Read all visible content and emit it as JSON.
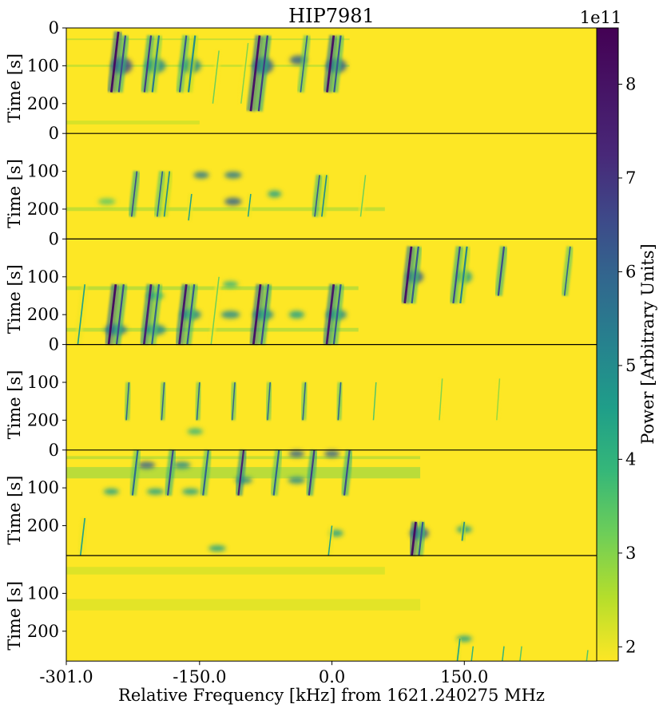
{
  "chart_data": {
    "type": "heatmap",
    "title": "HIP7981",
    "xlabel": "Relative Frequency [kHz] from 1621.240275 MHz",
    "ylabel": "Time [s]",
    "x_ticks": [
      "-301.0",
      "-150.0",
      "0.0",
      "150.0"
    ],
    "x_tick_values": [
      -301.0,
      -150.0,
      0.0,
      150.0
    ],
    "xlim": [
      -301.0,
      300.0
    ],
    "panels": [
      {
        "y_ticks": [
          0,
          100,
          200
        ],
        "ylim": [
          0,
          279
        ]
      },
      {
        "y_ticks": [
          0,
          100,
          200
        ],
        "ylim": [
          0,
          279
        ]
      },
      {
        "y_ticks": [
          0,
          100,
          200
        ],
        "ylim": [
          0,
          279
        ]
      },
      {
        "y_ticks": [
          0,
          100,
          200
        ],
        "ylim": [
          0,
          279
        ]
      },
      {
        "y_ticks": [
          0,
          100,
          200
        ],
        "ylim": [
          0,
          279
        ]
      },
      {
        "y_ticks": [
          100,
          200
        ],
        "ylim": [
          0,
          279
        ]
      }
    ],
    "colorbar": {
      "label": "Power [Arbitrary Units]",
      "multiplier": "1e11",
      "ticks": [
        2,
        3,
        4,
        5,
        6,
        7,
        8
      ],
      "range": [
        1.85,
        8.6
      ],
      "colormap": "viridis"
    },
    "signals": [
      {
        "panel": 0,
        "f": -242,
        "t0": 10,
        "t1": 170,
        "drift": -0.05,
        "width": 5,
        "power": 8.2
      },
      {
        "panel": 0,
        "f": -234,
        "t0": 20,
        "t1": 170,
        "drift": -0.05,
        "width": 4,
        "power": 6.5
      },
      {
        "panel": 0,
        "f": -205,
        "t0": 20,
        "t1": 170,
        "drift": -0.05,
        "width": 4,
        "power": 6.8
      },
      {
        "panel": 0,
        "f": -196,
        "t0": 20,
        "t1": 170,
        "drift": -0.05,
        "width": 4,
        "power": 5.5
      },
      {
        "panel": 0,
        "f": -165,
        "t0": 20,
        "t1": 170,
        "drift": -0.05,
        "width": 4,
        "power": 6.2
      },
      {
        "panel": 0,
        "f": -155,
        "t0": 20,
        "t1": 170,
        "drift": -0.05,
        "width": 4,
        "power": 5.0
      },
      {
        "panel": 0,
        "f": -82,
        "t0": 20,
        "t1": 220,
        "drift": -0.05,
        "width": 5,
        "power": 8.0
      },
      {
        "panel": 0,
        "f": -73,
        "t0": 20,
        "t1": 220,
        "drift": -0.05,
        "width": 4,
        "power": 6.8
      },
      {
        "panel": 0,
        "f": -28,
        "t0": 20,
        "t1": 170,
        "drift": -0.05,
        "width": 3,
        "power": 6.0
      },
      {
        "panel": 0,
        "f": 2,
        "t0": 20,
        "t1": 170,
        "drift": -0.05,
        "width": 5,
        "power": 8.0
      },
      {
        "panel": 0,
        "f": 10,
        "t0": 20,
        "t1": 170,
        "drift": -0.05,
        "width": 4,
        "power": 6.2
      },
      {
        "panel": 0,
        "f": -128,
        "t0": 60,
        "t1": 200,
        "drift": -0.05,
        "width": 2,
        "power": 3.2
      },
      {
        "panel": 0,
        "f": -95,
        "t0": 40,
        "t1": 200,
        "drift": -0.05,
        "width": 2,
        "power": 3.0
      },
      {
        "panel": 1,
        "f": -221,
        "t0": 100,
        "t1": 220,
        "drift": -0.05,
        "width": 3,
        "power": 6.5
      },
      {
        "panel": 1,
        "f": -192,
        "t0": 100,
        "t1": 220,
        "drift": -0.05,
        "width": 3,
        "power": 6.0
      },
      {
        "panel": 1,
        "f": -184,
        "t0": 100,
        "t1": 220,
        "drift": -0.05,
        "width": 3,
        "power": 5.0
      },
      {
        "panel": 1,
        "f": -159,
        "t0": 160,
        "t1": 230,
        "drift": -0.05,
        "width": 2,
        "power": 4.5
      },
      {
        "panel": 1,
        "f": -92,
        "t0": 160,
        "t1": 220,
        "drift": -0.05,
        "width": 2,
        "power": 4.5
      },
      {
        "panel": 1,
        "f": -14,
        "t0": 110,
        "t1": 220,
        "drift": -0.05,
        "width": 3,
        "power": 6.2
      },
      {
        "panel": 1,
        "f": -6,
        "t0": 110,
        "t1": 220,
        "drift": -0.05,
        "width": 3,
        "power": 5.0
      },
      {
        "panel": 1,
        "f": 38,
        "t0": 110,
        "t1": 220,
        "drift": -0.05,
        "width": 2,
        "power": 3.2
      },
      {
        "panel": 2,
        "f": -245,
        "t0": 120,
        "t1": 279,
        "drift": -0.05,
        "width": 5,
        "power": 8.2
      },
      {
        "panel": 2,
        "f": -236,
        "t0": 120,
        "t1": 279,
        "drift": -0.05,
        "width": 4,
        "power": 6.5
      },
      {
        "panel": 2,
        "f": -205,
        "t0": 120,
        "t1": 279,
        "drift": -0.05,
        "width": 5,
        "power": 7.5
      },
      {
        "panel": 2,
        "f": -196,
        "t0": 120,
        "t1": 279,
        "drift": -0.05,
        "width": 4,
        "power": 6.0
      },
      {
        "panel": 2,
        "f": -165,
        "t0": 120,
        "t1": 279,
        "drift": -0.05,
        "width": 5,
        "power": 7.8
      },
      {
        "panel": 2,
        "f": -156,
        "t0": 120,
        "t1": 279,
        "drift": -0.05,
        "width": 4,
        "power": 6.2
      },
      {
        "panel": 2,
        "f": -81,
        "t0": 120,
        "t1": 279,
        "drift": -0.05,
        "width": 5,
        "power": 8.0
      },
      {
        "panel": 2,
        "f": -72,
        "t0": 120,
        "t1": 279,
        "drift": -0.05,
        "width": 4,
        "power": 6.5
      },
      {
        "panel": 2,
        "f": 2,
        "t0": 120,
        "t1": 279,
        "drift": -0.05,
        "width": 5,
        "power": 7.8
      },
      {
        "panel": 2,
        "f": 10,
        "t0": 120,
        "t1": 279,
        "drift": -0.05,
        "width": 4,
        "power": 6.2
      },
      {
        "panel": 2,
        "f": 90,
        "t0": 20,
        "t1": 170,
        "drift": -0.05,
        "width": 5,
        "power": 8.0
      },
      {
        "panel": 2,
        "f": 98,
        "t0": 20,
        "t1": 170,
        "drift": -0.05,
        "width": 4,
        "power": 6.2
      },
      {
        "panel": 2,
        "f": 145,
        "t0": 20,
        "t1": 170,
        "drift": -0.05,
        "width": 4,
        "power": 6.5
      },
      {
        "panel": 2,
        "f": 153,
        "t0": 20,
        "t1": 170,
        "drift": -0.05,
        "width": 4,
        "power": 5.2
      },
      {
        "panel": 2,
        "f": 195,
        "t0": 20,
        "t1": 150,
        "drift": -0.05,
        "width": 4,
        "power": 6.5
      },
      {
        "panel": 2,
        "f": 270,
        "t0": 20,
        "t1": 150,
        "drift": -0.05,
        "width": 3,
        "power": 6.0
      },
      {
        "panel": 2,
        "f": -128,
        "t0": 100,
        "t1": 279,
        "drift": -0.05,
        "width": 2,
        "power": 3.2
      },
      {
        "panel": 2,
        "f": -280,
        "t0": 120,
        "t1": 279,
        "drift": -0.05,
        "width": 3,
        "power": 4.5
      },
      {
        "panel": 3,
        "f": -230,
        "t0": 100,
        "t1": 200,
        "drift": -0.03,
        "width": 2,
        "power": 6.0
      },
      {
        "panel": 3,
        "f": -190,
        "t0": 100,
        "t1": 200,
        "drift": -0.03,
        "width": 2,
        "power": 6.0
      },
      {
        "panel": 3,
        "f": -150,
        "t0": 100,
        "t1": 200,
        "drift": -0.03,
        "width": 2,
        "power": 6.0
      },
      {
        "panel": 3,
        "f": -110,
        "t0": 100,
        "t1": 200,
        "drift": -0.03,
        "width": 2,
        "power": 6.0
      },
      {
        "panel": 3,
        "f": -70,
        "t0": 100,
        "t1": 200,
        "drift": -0.03,
        "width": 2,
        "power": 6.0
      },
      {
        "panel": 3,
        "f": -30,
        "t0": 100,
        "t1": 200,
        "drift": -0.03,
        "width": 2,
        "power": 6.0
      },
      {
        "panel": 3,
        "f": 10,
        "t0": 100,
        "t1": 200,
        "drift": -0.03,
        "width": 2,
        "power": 6.0
      },
      {
        "panel": 3,
        "f": 50,
        "t0": 100,
        "t1": 200,
        "drift": -0.03,
        "width": 2,
        "power": 3.5
      },
      {
        "panel": 3,
        "f": 125,
        "t0": 90,
        "t1": 200,
        "drift": -0.03,
        "width": 2,
        "power": 3.0
      },
      {
        "panel": 3,
        "f": 190,
        "t0": 90,
        "t1": 200,
        "drift": -0.03,
        "width": 2,
        "power": 2.8
      },
      {
        "panel": 4,
        "f": -220,
        "t0": 0,
        "t1": 120,
        "drift": -0.05,
        "width": 4,
        "power": 5.8
      },
      {
        "panel": 4,
        "f": -180,
        "t0": 0,
        "t1": 120,
        "drift": -0.05,
        "width": 4,
        "power": 6.5
      },
      {
        "panel": 4,
        "f": -140,
        "t0": 0,
        "t1": 120,
        "drift": -0.05,
        "width": 4,
        "power": 6.0
      },
      {
        "panel": 4,
        "f": -100,
        "t0": 0,
        "t1": 120,
        "drift": -0.05,
        "width": 4,
        "power": 7.5
      },
      {
        "panel": 4,
        "f": -60,
        "t0": 0,
        "t1": 120,
        "drift": -0.05,
        "width": 4,
        "power": 6.0
      },
      {
        "panel": 4,
        "f": -20,
        "t0": 0,
        "t1": 120,
        "drift": -0.05,
        "width": 4,
        "power": 6.8
      },
      {
        "panel": 4,
        "f": 20,
        "t0": 0,
        "t1": 120,
        "drift": -0.05,
        "width": 4,
        "power": 6.5
      },
      {
        "panel": 4,
        "f": 95,
        "t0": 190,
        "t1": 279,
        "drift": -0.05,
        "width": 5,
        "power": 8.2
      },
      {
        "panel": 4,
        "f": 103,
        "t0": 190,
        "t1": 279,
        "drift": -0.05,
        "width": 4,
        "power": 6.2
      },
      {
        "panel": 4,
        "f": 150,
        "t0": 190,
        "t1": 240,
        "drift": -0.05,
        "width": 3,
        "power": 5.0
      },
      {
        "panel": 4,
        "f": 0,
        "t0": 200,
        "t1": 279,
        "drift": -0.05,
        "width": 2,
        "power": 4.5
      },
      {
        "panel": 4,
        "f": -280,
        "t0": 180,
        "t1": 279,
        "drift": -0.05,
        "width": 3,
        "power": 4.5
      },
      {
        "panel": 5,
        "f": 145,
        "t0": 220,
        "t1": 279,
        "drift": -0.05,
        "width": 3,
        "power": 4.5
      },
      {
        "panel": 5,
        "f": 160,
        "t0": 240,
        "t1": 279,
        "drift": -0.05,
        "width": 2,
        "power": 4.0
      },
      {
        "panel": 5,
        "f": 195,
        "t0": 240,
        "t1": 279,
        "drift": -0.05,
        "width": 2,
        "power": 4.0
      },
      {
        "panel": 5,
        "f": 215,
        "t0": 240,
        "t1": 279,
        "drift": -0.05,
        "width": 2,
        "power": 3.5
      },
      {
        "panel": 5,
        "f": 290,
        "t0": 250,
        "t1": 279,
        "drift": -0.05,
        "width": 2,
        "power": 3.5
      }
    ],
    "blobs": [
      {
        "panel": 0,
        "f": -238,
        "t": 100,
        "fw": 18,
        "tw": 35,
        "power": 6.5
      },
      {
        "panel": 0,
        "f": -200,
        "t": 100,
        "fw": 18,
        "tw": 30,
        "power": 5.0
      },
      {
        "panel": 0,
        "f": -160,
        "t": 100,
        "fw": 18,
        "tw": 30,
        "power": 5.0
      },
      {
        "panel": 0,
        "f": -78,
        "t": 100,
        "fw": 18,
        "tw": 35,
        "power": 6.0
      },
      {
        "panel": 0,
        "f": -38,
        "t": 85,
        "fw": 14,
        "tw": 16,
        "power": 6.0
      },
      {
        "panel": 0,
        "f": 5,
        "t": 100,
        "fw": 18,
        "tw": 30,
        "power": 6.0
      },
      {
        "panel": 1,
        "f": -148,
        "t": 110,
        "fw": 12,
        "tw": 10,
        "power": 5.5
      },
      {
        "panel": 1,
        "f": -112,
        "t": 110,
        "fw": 14,
        "tw": 10,
        "power": 5.5
      },
      {
        "panel": 1,
        "f": -112,
        "t": 180,
        "fw": 14,
        "tw": 12,
        "power": 6.0
      },
      {
        "panel": 1,
        "f": -65,
        "t": 160,
        "fw": 10,
        "tw": 10,
        "power": 4.5
      },
      {
        "panel": 1,
        "f": -255,
        "t": 180,
        "fw": 14,
        "tw": 8,
        "power": 3.5
      },
      {
        "panel": 2,
        "f": -245,
        "t": 240,
        "fw": 20,
        "tw": 20,
        "power": 5.5
      },
      {
        "panel": 2,
        "f": -200,
        "t": 240,
        "fw": 18,
        "tw": 20,
        "power": 5.0
      },
      {
        "panel": 2,
        "f": -200,
        "t": 150,
        "fw": 14,
        "tw": 12,
        "power": 4.0
      },
      {
        "panel": 2,
        "f": -160,
        "t": 200,
        "fw": 18,
        "tw": 20,
        "power": 5.0
      },
      {
        "panel": 2,
        "f": -115,
        "t": 200,
        "fw": 16,
        "tw": 12,
        "power": 5.0
      },
      {
        "panel": 2,
        "f": -115,
        "t": 120,
        "fw": 12,
        "tw": 8,
        "power": 4.0
      },
      {
        "panel": 2,
        "f": -78,
        "t": 200,
        "fw": 18,
        "tw": 20,
        "power": 5.0
      },
      {
        "panel": 2,
        "f": -40,
        "t": 200,
        "fw": 12,
        "tw": 12,
        "power": 4.5
      },
      {
        "panel": 2,
        "f": 5,
        "t": 200,
        "fw": 18,
        "tw": 20,
        "power": 5.0
      },
      {
        "panel": 2,
        "f": 94,
        "t": 100,
        "fw": 14,
        "tw": 25,
        "power": 6.0
      },
      {
        "panel": 2,
        "f": 150,
        "t": 100,
        "fw": 12,
        "tw": 25,
        "power": 4.5
      },
      {
        "panel": 3,
        "f": -155,
        "t": 230,
        "fw": 12,
        "tw": 8,
        "power": 4.0
      },
      {
        "panel": 4,
        "f": -210,
        "t": 40,
        "fw": 14,
        "tw": 10,
        "power": 6.0
      },
      {
        "panel": 4,
        "f": -170,
        "t": 40,
        "fw": 14,
        "tw": 10,
        "power": 5.0
      },
      {
        "panel": 4,
        "f": -100,
        "t": 80,
        "fw": 14,
        "tw": 10,
        "power": 5.0
      },
      {
        "panel": 4,
        "f": -40,
        "t": 80,
        "fw": 14,
        "tw": 10,
        "power": 5.0
      },
      {
        "panel": 4,
        "f": -40,
        "t": 10,
        "fw": 12,
        "tw": 10,
        "power": 6.0
      },
      {
        "panel": 4,
        "f": 0,
        "t": 10,
        "fw": 12,
        "tw": 10,
        "power": 6.0
      },
      {
        "panel": 4,
        "f": -200,
        "t": 110,
        "fw": 14,
        "tw": 8,
        "power": 4.5
      },
      {
        "panel": 4,
        "f": -160,
        "t": 110,
        "fw": 14,
        "tw": 8,
        "power": 4.5
      },
      {
        "panel": 4,
        "f": -250,
        "t": 110,
        "fw": 12,
        "tw": 8,
        "power": 4.5
      },
      {
        "panel": 4,
        "f": -130,
        "t": 260,
        "fw": 14,
        "tw": 8,
        "power": 4.5
      },
      {
        "panel": 4,
        "f": 99,
        "t": 220,
        "fw": 16,
        "tw": 25,
        "power": 6.0
      },
      {
        "panel": 4,
        "f": 150,
        "t": 210,
        "fw": 12,
        "tw": 10,
        "power": 4.5
      },
      {
        "panel": 4,
        "f": 5,
        "t": 220,
        "fw": 10,
        "tw": 10,
        "power": 4.5
      },
      {
        "panel": 5,
        "f": 150,
        "t": 220,
        "fw": 12,
        "tw": 8,
        "power": 4.5
      }
    ],
    "stripes": [
      {
        "panel": 0,
        "f0": -301,
        "f1": 20,
        "t": 30,
        "tw": 4,
        "power": 2.8
      },
      {
        "panel": 0,
        "f0": -301,
        "f1": 20,
        "t": 100,
        "tw": 6,
        "power": 2.7
      },
      {
        "panel": 0,
        "f0": -301,
        "f1": -150,
        "t": 250,
        "tw": 10,
        "power": 2.5
      },
      {
        "panel": 1,
        "f0": -301,
        "f1": 60,
        "t": 200,
        "tw": 10,
        "power": 2.8
      },
      {
        "panel": 2,
        "f0": -301,
        "f1": 30,
        "t": 130,
        "tw": 10,
        "power": 2.9
      },
      {
        "panel": 2,
        "f0": -301,
        "f1": 30,
        "t": 240,
        "tw": 10,
        "power": 2.9
      },
      {
        "panel": 4,
        "f0": -301,
        "f1": 100,
        "t": 60,
        "tw": 30,
        "power": 3.0
      },
      {
        "panel": 4,
        "f0": -301,
        "f1": 100,
        "t": 20,
        "tw": 8,
        "power": 2.8
      },
      {
        "panel": 5,
        "f0": -301,
        "f1": 60,
        "t": 40,
        "tw": 20,
        "power": 2.4
      },
      {
        "panel": 5,
        "f0": -301,
        "f1": 100,
        "t": 130,
        "tw": 30,
        "power": 2.3
      }
    ]
  }
}
